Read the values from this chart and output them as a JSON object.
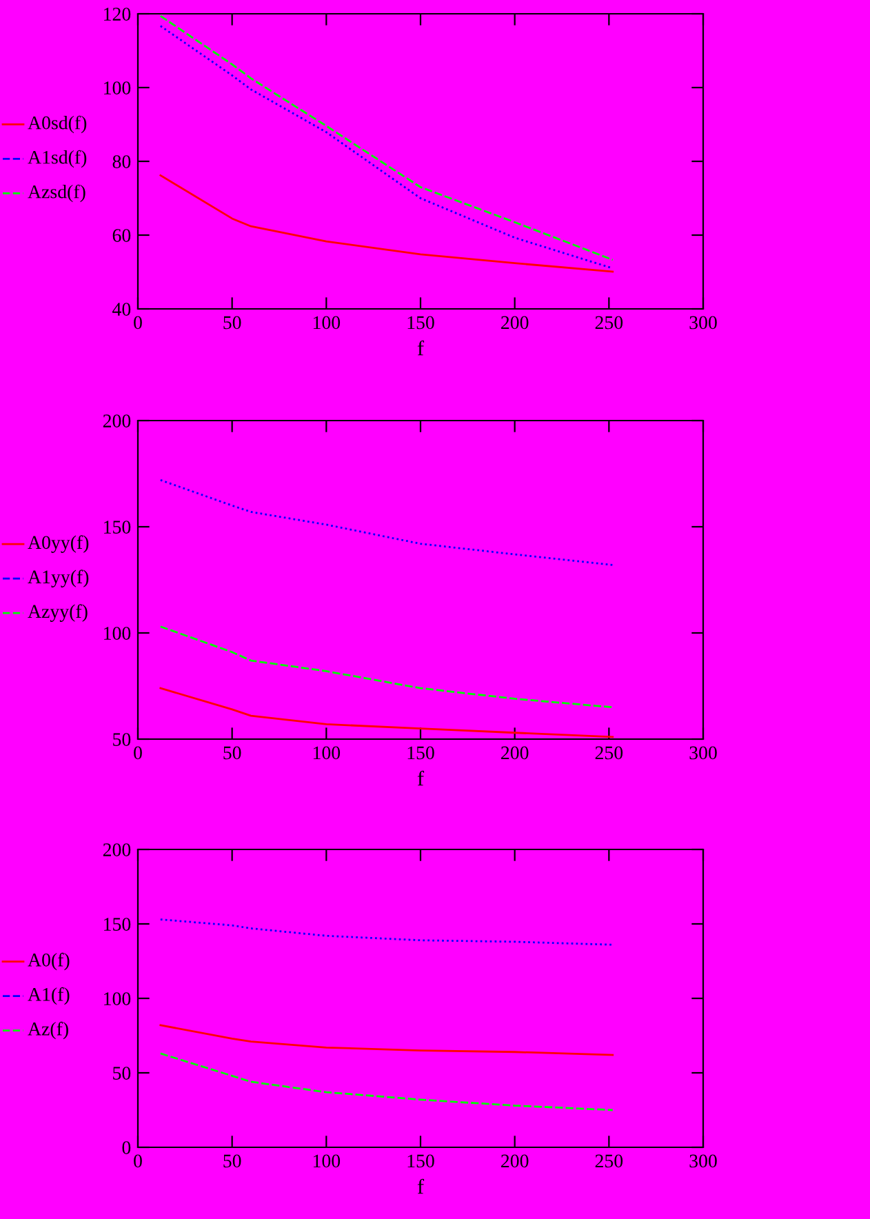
{
  "chart_data": [
    {
      "type": "line",
      "xlabel": "f",
      "x": [
        12,
        50,
        60,
        100,
        150,
        200,
        252
      ],
      "xlim": [
        0,
        300
      ],
      "xticks": [
        0,
        50,
        100,
        150,
        200,
        250,
        300
      ],
      "ylim": [
        40,
        120
      ],
      "yticks": [
        40,
        60,
        80,
        100,
        120
      ],
      "legend": "left",
      "grid": false,
      "series": [
        {
          "name": "A0sd(f)",
          "color": "#ff0000",
          "line_style": "solid",
          "values": [
            76.2,
            64.5,
            62.4,
            58.3,
            54.8,
            52.4,
            50.1
          ]
        },
        {
          "name": "A1sd(f)",
          "color": "#0000ff",
          "line_style": "dotted",
          "values": [
            116.7,
            103.3,
            99.5,
            87.9,
            70,
            59.3,
            51
          ]
        },
        {
          "name": "Azsd(f)",
          "color": "#00ff00",
          "line_style": "dashed",
          "values": [
            119.4,
            106.3,
            102.5,
            89.6,
            73,
            63.5,
            53.3
          ]
        }
      ]
    },
    {
      "type": "line",
      "xlabel": "f",
      "x": [
        12,
        50,
        60,
        100,
        150,
        200,
        252
      ],
      "xlim": [
        0,
        300
      ],
      "xticks": [
        0,
        50,
        100,
        150,
        200,
        250,
        300
      ],
      "ylim": [
        50,
        200
      ],
      "yticks": [
        50,
        100,
        150,
        200
      ],
      "legend": "left",
      "grid": false,
      "series": [
        {
          "name": "A0yy(f)",
          "color": "#ff0000",
          "line_style": "solid",
          "values": [
            74,
            64,
            61,
            57,
            55,
            53,
            51
          ]
        },
        {
          "name": "A1yy(f)",
          "color": "#0000ff",
          "line_style": "dotted",
          "values": [
            172,
            160,
            157,
            151,
            142,
            137,
            132
          ]
        },
        {
          "name": "Azyy(f)",
          "color": "#00ff00",
          "line_style": "dashed",
          "values": [
            103,
            91,
            87,
            82,
            74,
            69,
            65
          ]
        }
      ]
    },
    {
      "type": "line",
      "xlabel": "f",
      "x": [
        12,
        50,
        60,
        100,
        150,
        200,
        252
      ],
      "xlim": [
        0,
        300
      ],
      "xticks": [
        0,
        50,
        100,
        150,
        200,
        250,
        300
      ],
      "ylim": [
        0,
        200
      ],
      "yticks": [
        0,
        50,
        100,
        150,
        200
      ],
      "legend": "left",
      "grid": false,
      "series": [
        {
          "name": "A0(f)",
          "color": "#ff0000",
          "line_style": "solid",
          "values": [
            82,
            73,
            71,
            67,
            65,
            64,
            62
          ]
        },
        {
          "name": "A1(f)",
          "color": "#0000ff",
          "line_style": "dotted",
          "values": [
            153,
            149,
            147,
            142,
            139,
            138,
            136
          ]
        },
        {
          "name": "Az(f)",
          "color": "#00ff00",
          "line_style": "dashed",
          "values": [
            63,
            48,
            44,
            37,
            32,
            28,
            25
          ]
        }
      ]
    }
  ]
}
